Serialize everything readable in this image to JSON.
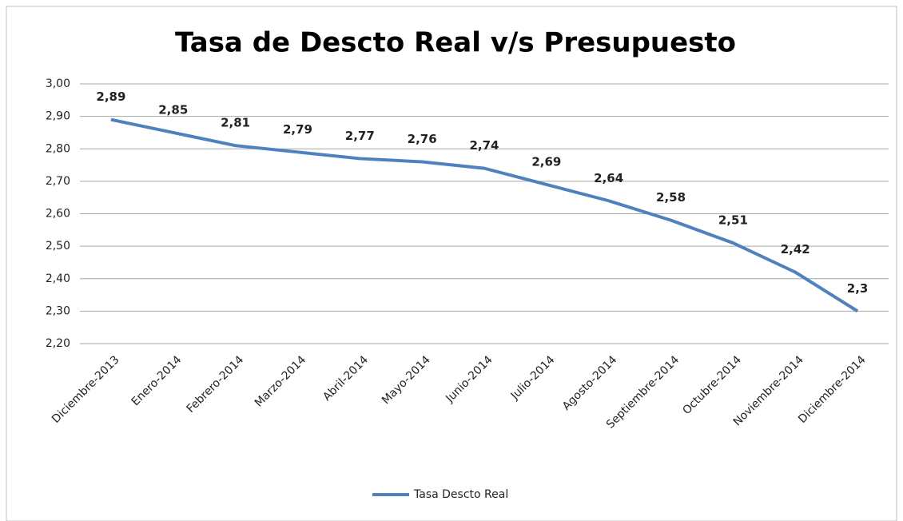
{
  "chart_data": {
    "type": "line",
    "title": "Tasa de Descto Real v/s Presupuesto",
    "categories": [
      "Diciembre-2013",
      "Enero-2014",
      "Febrero-2014",
      "Marzo-2014",
      "Abril-2014",
      "Mayo-2014",
      "Junio-2014",
      "Julio-2014",
      "Agosto-2014",
      "Septiembre-2014",
      "Octubre-2014",
      "Noviembre-2014",
      "Diciembre-2014"
    ],
    "series": [
      {
        "name": "Tasa Descto Real",
        "color": "#4f81bd",
        "values": [
          2.89,
          2.85,
          2.81,
          2.79,
          2.77,
          2.76,
          2.74,
          2.69,
          2.64,
          2.58,
          2.51,
          2.42,
          2.3
        ],
        "value_labels": [
          "2,89",
          "2,85",
          "2,81",
          "2,79",
          "2,77",
          "2,76",
          "2,74",
          "2,69",
          "2,64",
          "2,58",
          "2,51",
          "2,42",
          "2,3"
        ]
      }
    ],
    "ylim": [
      2.2,
      3.0
    ],
    "yticks": [
      {
        "value": 2.2,
        "label": "2,20"
      },
      {
        "value": 2.3,
        "label": "2,30"
      },
      {
        "value": 2.4,
        "label": "2,40"
      },
      {
        "value": 2.5,
        "label": "2,50"
      },
      {
        "value": 2.6,
        "label": "2,60"
      },
      {
        "value": 2.7,
        "label": "2,70"
      },
      {
        "value": 2.8,
        "label": "2,80"
      },
      {
        "value": 2.9,
        "label": "2,90"
      },
      {
        "value": 3.0,
        "label": "3,00"
      }
    ],
    "grid": true,
    "legend": "bottom"
  }
}
